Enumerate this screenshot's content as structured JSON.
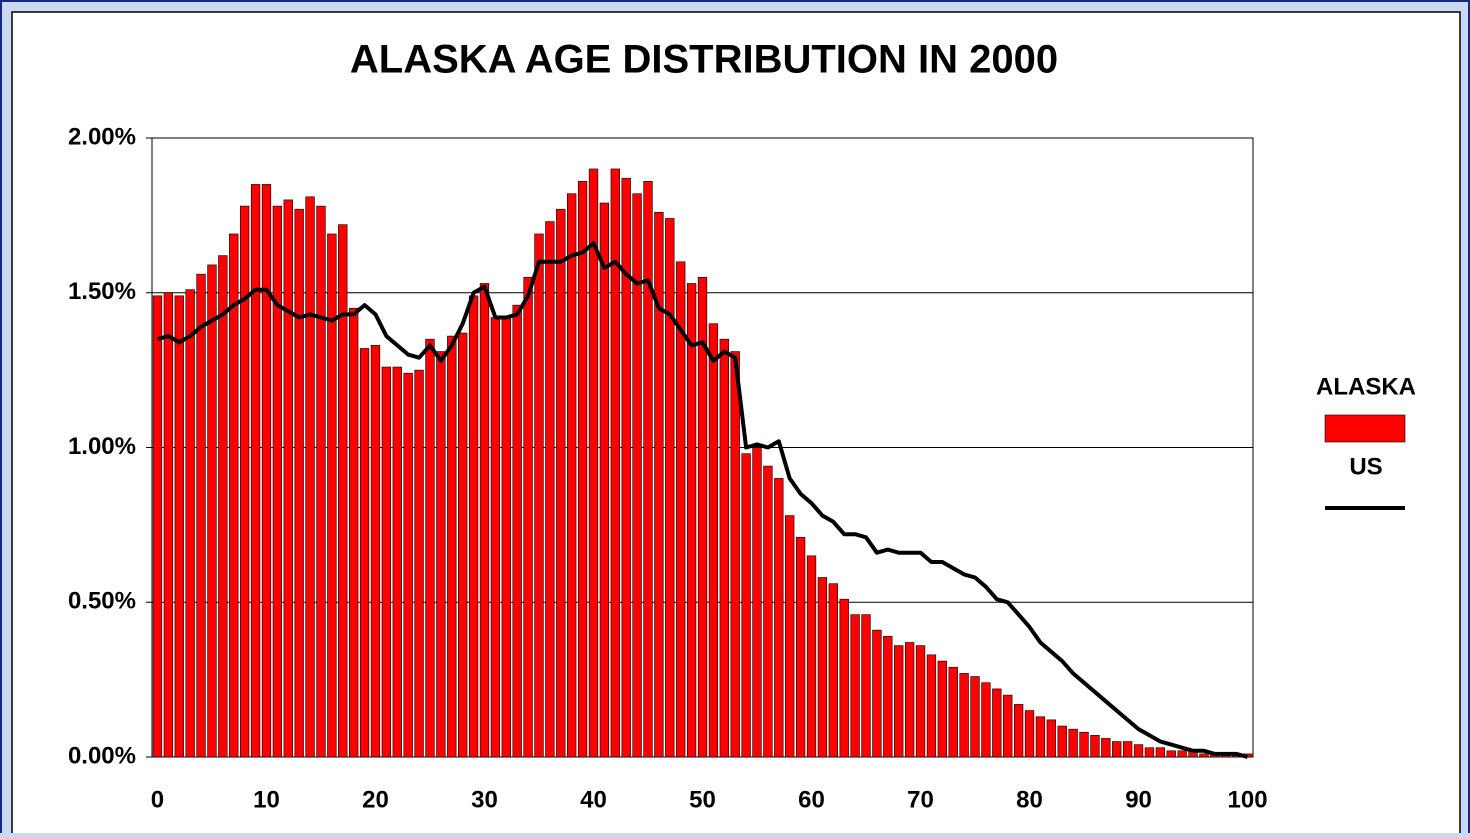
{
  "chart_data": {
    "type": "bar-line",
    "title": "ALASKA AGE DISTRIBUTION IN 2000",
    "categories": [
      "0",
      null,
      null,
      null,
      null,
      null,
      null,
      null,
      null,
      null,
      "10",
      null,
      null,
      null,
      null,
      null,
      null,
      null,
      null,
      null,
      "20",
      null,
      null,
      null,
      null,
      null,
      null,
      null,
      null,
      null,
      "30",
      null,
      null,
      null,
      null,
      null,
      null,
      null,
      null,
      null,
      "40",
      null,
      null,
      null,
      null,
      null,
      null,
      null,
      null,
      null,
      "50",
      null,
      null,
      null,
      null,
      null,
      null,
      null,
      null,
      null,
      "60",
      null,
      null,
      null,
      null,
      null,
      null,
      null,
      null,
      null,
      "70",
      null,
      null,
      null,
      null,
      null,
      null,
      null,
      null,
      null,
      "80",
      null,
      null,
      null,
      null,
      null,
      null,
      null,
      null,
      null,
      "90",
      null,
      null,
      null,
      null,
      null,
      null,
      null,
      null,
      null,
      "100"
    ],
    "series": [
      {
        "name": "ALASKA",
        "kind": "bar",
        "color": "#ff0000",
        "values": [
          1.49,
          1.5,
          1.49,
          1.51,
          1.56,
          1.59,
          1.62,
          1.69,
          1.78,
          1.85,
          1.85,
          1.78,
          1.8,
          1.77,
          1.81,
          1.78,
          1.69,
          1.72,
          1.45,
          1.32,
          1.33,
          1.26,
          1.26,
          1.24,
          1.25,
          1.35,
          1.31,
          1.36,
          1.37,
          1.49,
          1.53,
          1.42,
          1.42,
          1.46,
          1.55,
          1.69,
          1.73,
          1.77,
          1.82,
          1.86,
          1.9,
          1.79,
          1.9,
          1.87,
          1.82,
          1.86,
          1.76,
          1.74,
          1.6,
          1.53,
          1.55,
          1.4,
          1.35,
          1.31,
          0.98,
          1.0,
          0.94,
          0.9,
          0.78,
          0.71,
          0.65,
          0.58,
          0.56,
          0.51,
          0.46,
          0.46,
          0.41,
          0.39,
          0.36,
          0.37,
          0.36,
          0.33,
          0.31,
          0.29,
          0.27,
          0.26,
          0.24,
          0.22,
          0.2,
          0.17,
          0.15,
          0.13,
          0.12,
          0.1,
          0.09,
          0.08,
          0.07,
          0.06,
          0.05,
          0.05,
          0.04,
          0.03,
          0.03,
          0.02,
          0.02,
          0.02,
          0.01,
          0.01,
          0.01,
          0.01,
          0.01
        ]
      },
      {
        "name": "US",
        "kind": "line",
        "color": "#000000",
        "values": [
          1.35,
          1.36,
          1.34,
          1.36,
          1.39,
          1.41,
          1.43,
          1.46,
          1.48,
          1.51,
          1.51,
          1.46,
          1.44,
          1.42,
          1.43,
          1.42,
          1.41,
          1.43,
          1.43,
          1.46,
          1.43,
          1.36,
          1.33,
          1.3,
          1.29,
          1.33,
          1.28,
          1.33,
          1.4,
          1.5,
          1.52,
          1.42,
          1.42,
          1.43,
          1.49,
          1.6,
          1.6,
          1.6,
          1.62,
          1.63,
          1.66,
          1.58,
          1.6,
          1.56,
          1.53,
          1.54,
          1.45,
          1.43,
          1.38,
          1.33,
          1.34,
          1.28,
          1.31,
          1.29,
          1.0,
          1.01,
          1.0,
          1.02,
          0.9,
          0.85,
          0.82,
          0.78,
          0.76,
          0.72,
          0.72,
          0.71,
          0.66,
          0.67,
          0.66,
          0.66,
          0.66,
          0.63,
          0.63,
          0.61,
          0.59,
          0.58,
          0.55,
          0.51,
          0.5,
          0.46,
          0.42,
          0.37,
          0.34,
          0.31,
          0.27,
          0.24,
          0.21,
          0.18,
          0.15,
          0.12,
          0.09,
          0.07,
          0.05,
          0.04,
          0.03,
          0.02,
          0.02,
          0.01,
          0.01,
          0.01,
          0.0
        ]
      }
    ],
    "ylim": [
      0,
      2
    ],
    "yticks": [
      {
        "value": 0,
        "label": "0.00%"
      },
      {
        "value": 0.5,
        "label": "0.50%"
      },
      {
        "value": 1,
        "label": "1.00%"
      },
      {
        "value": 1.5,
        "label": "1.50%"
      },
      {
        "value": 2,
        "label": "2.00%"
      }
    ],
    "grid": true,
    "legend": "right"
  }
}
